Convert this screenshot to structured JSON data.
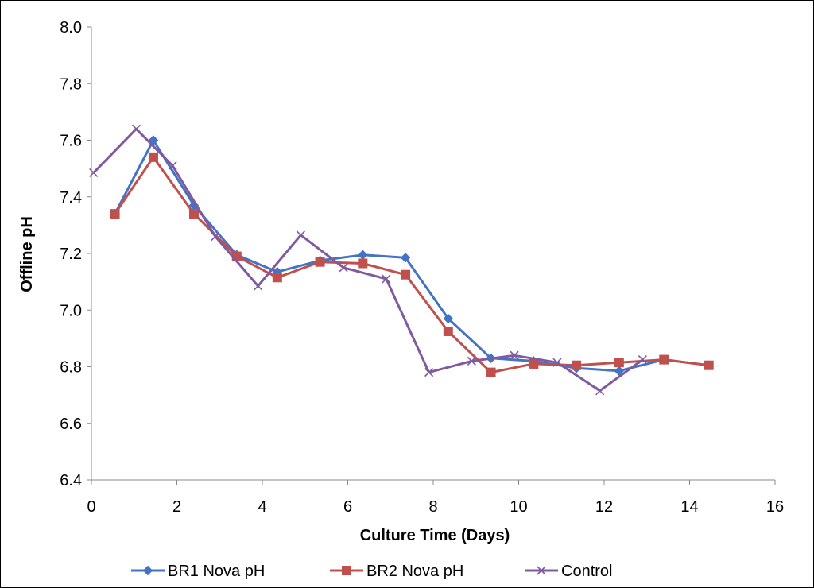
{
  "chart_data": {
    "type": "line",
    "title": "",
    "xlabel": "Culture Time (Days)",
    "ylabel": "Offline pH",
    "xlim": [
      0,
      16
    ],
    "ylim": [
      6.4,
      8.0
    ],
    "x_ticks": [
      0,
      2,
      4,
      6,
      8,
      10,
      12,
      14,
      16
    ],
    "y_ticks": [
      6.4,
      6.6,
      6.8,
      7.0,
      7.2,
      7.4,
      7.6,
      7.8,
      8.0
    ],
    "y_tick_labels": [
      "6.4",
      "6.6",
      "6.8",
      "7.0",
      "7.2",
      "7.4",
      "7.6",
      "7.8",
      "8.0"
    ],
    "grid": false,
    "legend_position": "bottom",
    "series": [
      {
        "name": "BR1 Nova pH",
        "color": "#4472c4",
        "marker": "diamond",
        "points": [
          [
            0.55,
            7.34
          ],
          [
            1.45,
            7.6
          ],
          [
            2.4,
            7.37
          ],
          [
            3.4,
            7.195
          ],
          [
            4.35,
            7.135
          ],
          [
            5.35,
            7.175
          ],
          [
            6.35,
            7.195
          ],
          [
            7.35,
            7.185
          ],
          [
            8.35,
            6.97
          ],
          [
            9.35,
            6.83
          ],
          [
            10.35,
            6.82
          ],
          [
            11.35,
            6.795
          ],
          [
            12.35,
            6.785
          ],
          [
            13.4,
            6.825
          ],
          [
            14.45,
            6.805
          ]
        ]
      },
      {
        "name": "BR2 Nova pH",
        "color": "#c0504d",
        "marker": "square",
        "points": [
          [
            0.55,
            7.34
          ],
          [
            1.45,
            7.54
          ],
          [
            2.4,
            7.34
          ],
          [
            3.4,
            7.19
          ],
          [
            4.35,
            7.115
          ],
          [
            5.35,
            7.17
          ],
          [
            6.35,
            7.165
          ],
          [
            7.35,
            7.125
          ],
          [
            8.35,
            6.925
          ],
          [
            9.35,
            6.78
          ],
          [
            10.35,
            6.81
          ],
          [
            11.35,
            6.805
          ],
          [
            12.35,
            6.815
          ],
          [
            13.4,
            6.825
          ],
          [
            14.45,
            6.805
          ]
        ]
      },
      {
        "name": "Control",
        "color": "#7f5a9e",
        "marker": "x",
        "points": [
          [
            0.05,
            7.485
          ],
          [
            1.05,
            7.64
          ],
          [
            1.9,
            7.51
          ],
          [
            2.9,
            7.26
          ],
          [
            3.9,
            7.085
          ],
          [
            4.9,
            7.265
          ],
          [
            5.9,
            7.15
          ],
          [
            6.9,
            7.11
          ],
          [
            7.9,
            6.78
          ],
          [
            8.9,
            6.82
          ],
          [
            9.9,
            6.84
          ],
          [
            10.9,
            6.815
          ],
          [
            11.9,
            6.715
          ],
          [
            12.9,
            6.825
          ]
        ]
      }
    ]
  }
}
